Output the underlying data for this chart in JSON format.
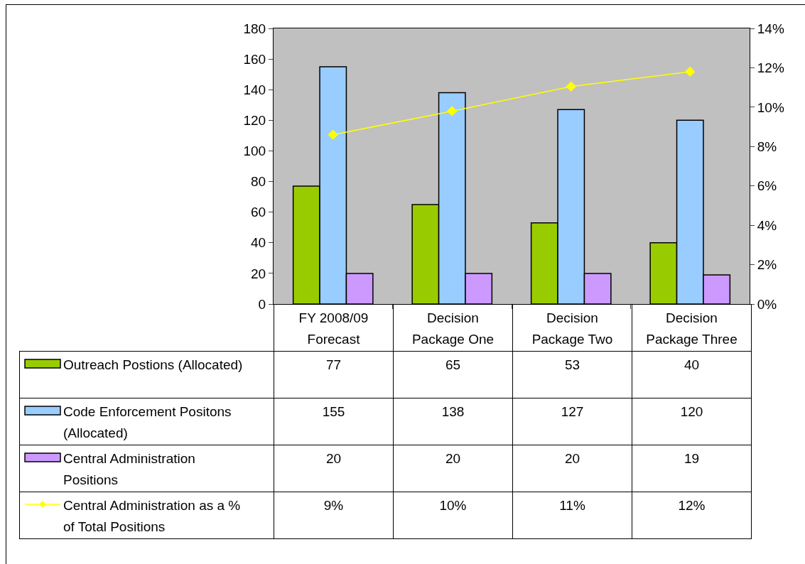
{
  "chart_data": {
    "type": "bar",
    "categories": [
      "FY 2008/09 Forecast",
      "Decision Package One",
      "Decision Package Two",
      "Decision Package Three"
    ],
    "series": [
      {
        "name": "Outreach Postions (Allocated)",
        "color": "#99cc00",
        "values": [
          77,
          65,
          53,
          40
        ],
        "value_labels": [
          "77",
          "65",
          "53",
          "40"
        ]
      },
      {
        "name": "Code Enforcement Positons (Allocated)",
        "color": "#99ccff",
        "values": [
          155,
          138,
          127,
          120
        ],
        "value_labels": [
          "155",
          "138",
          "127",
          "120"
        ]
      },
      {
        "name": "Central Administration Positions",
        "color": "#cc99ff",
        "values": [
          20,
          20,
          20,
          19
        ],
        "value_labels": [
          "20",
          "20",
          "20",
          "19"
        ]
      },
      {
        "name": "Central Administration as a % of Total Positions",
        "type": "line",
        "axis": "y2",
        "color": "#ffff00",
        "values": [
          8.6,
          9.8,
          11.05,
          11.8
        ],
        "value_labels": [
          "9%",
          "10%",
          "11%",
          "12%"
        ]
      }
    ],
    "ylim": [
      0,
      180
    ],
    "yticks": [
      0,
      20,
      40,
      60,
      80,
      100,
      120,
      140,
      160,
      180
    ],
    "y2lim": [
      0,
      14
    ],
    "y2ticks": [
      {
        "value": 0,
        "label": "0%"
      },
      {
        "value": 2,
        "label": "2%"
      },
      {
        "value": 4,
        "label": "4%"
      },
      {
        "value": 6,
        "label": "6%"
      },
      {
        "value": 8,
        "label": "8%"
      },
      {
        "value": 10,
        "label": "10%"
      },
      {
        "value": 12,
        "label": "12%"
      },
      {
        "value": 14,
        "label": "14%"
      }
    ],
    "grid": false,
    "legend": "bottom left",
    "marker": "diamond",
    "line_style": "solid"
  }
}
